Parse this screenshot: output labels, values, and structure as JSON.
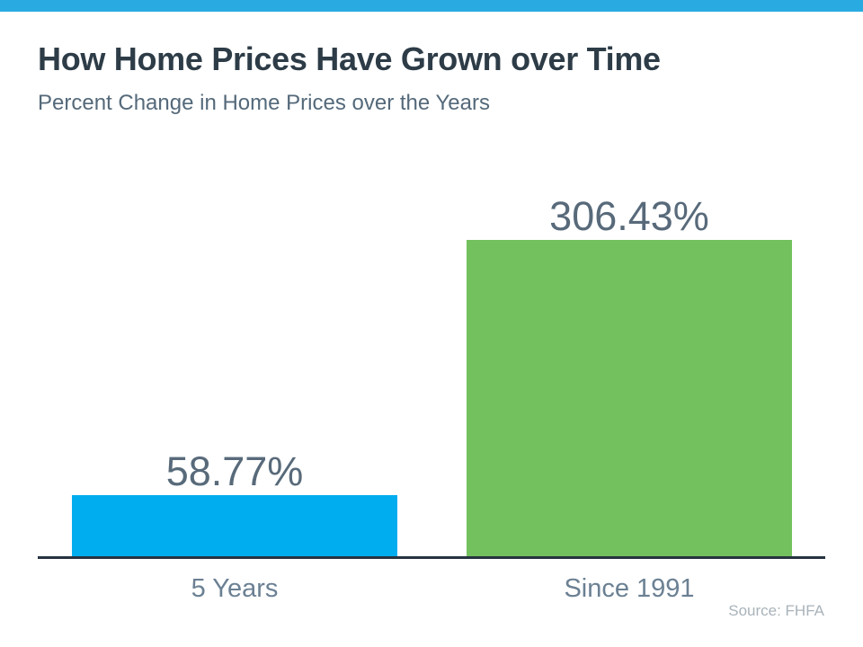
{
  "page": {
    "title": "How Home Prices Have Grown over Time",
    "subtitle": "Percent Change in Home Prices over the Years",
    "source_note": "Source: FHFA"
  },
  "colors": {
    "accent_bar": "#29abe2",
    "bar_blue": "#00adee",
    "bar_green": "#73c05e",
    "axis_line": "#263340",
    "title_text": "#2d3c47",
    "subtitle_text": "#54697a",
    "value_text": "#586a7a",
    "category_text": "#6b8093",
    "source_text": "#a9b3ba"
  },
  "chart_data": {
    "type": "bar",
    "title": "How Home Prices Have Grown over Time",
    "subtitle": "Percent Change in Home Prices over the Years",
    "categories": [
      "5 Years",
      "Since 1991"
    ],
    "values": [
      58.77,
      306.43
    ],
    "value_labels": [
      "58.77%",
      "306.43%"
    ],
    "bar_colors": [
      "#00adee",
      "#73c05e"
    ],
    "xlabel": "",
    "ylabel": "",
    "unit": "percent",
    "ylim": [
      0,
      306.43
    ],
    "grid": false,
    "legend": false,
    "annotations": [
      "Source: FHFA"
    ]
  }
}
